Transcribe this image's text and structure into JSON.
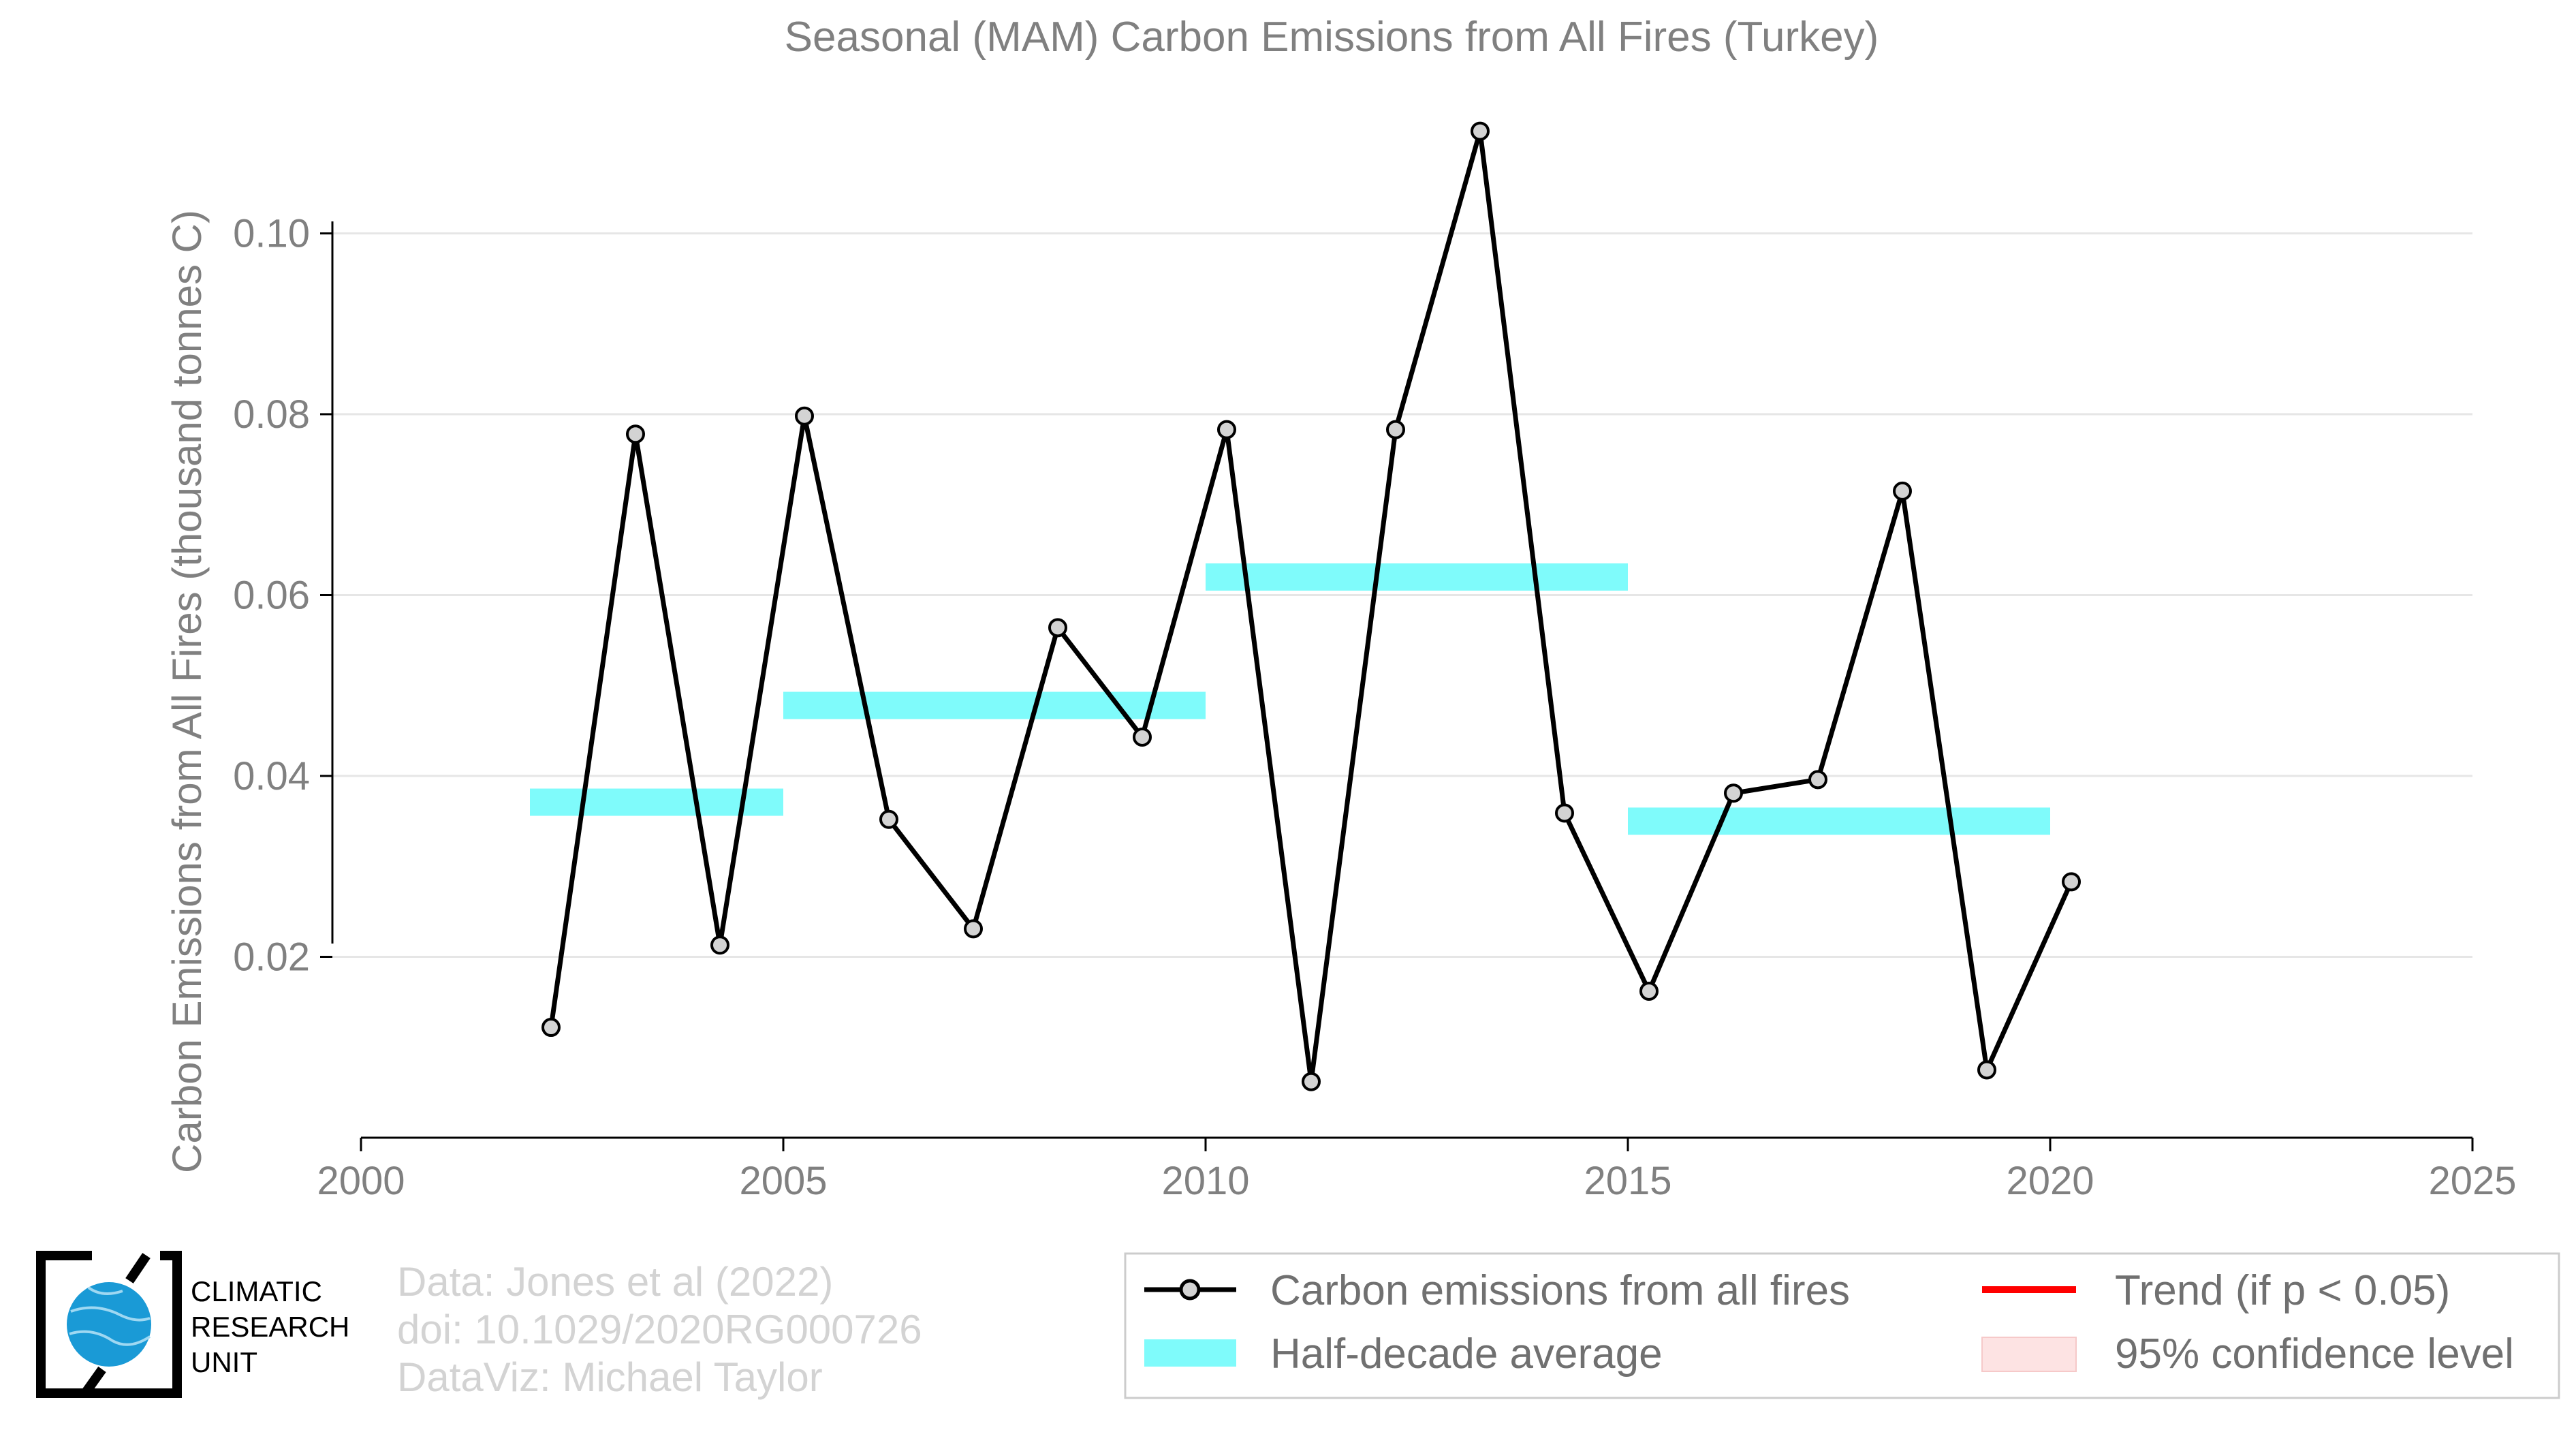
{
  "chart_data": {
    "type": "line",
    "title": "Seasonal (MAM) Carbon Emissions from All Fires (Turkey)",
    "xlabel": "",
    "ylabel": "Carbon Emissions from All Fires (thousand tonnes C)",
    "xlim": [
      2000,
      2025
    ],
    "ylim": [
      0,
      0.113
    ],
    "x_ticks": [
      "2000",
      "2005",
      "2010",
      "2015",
      "2020",
      "2025"
    ],
    "y_ticks": [
      "0.02",
      "0.04",
      "0.06",
      "0.08",
      "0.10"
    ],
    "grid": "horizontal",
    "series": [
      {
        "name": "Carbon emissions from all fires",
        "color": "#000000",
        "x": [
          2002,
          2003,
          2004,
          2005,
          2006,
          2007,
          2008,
          2009,
          2010,
          2011,
          2012,
          2013,
          2014,
          2015,
          2016,
          2017,
          2018,
          2019,
          2020
        ],
        "y": [
          0.0122,
          0.0778,
          0.0213,
          0.0798,
          0.0352,
          0.0231,
          0.0564,
          0.0443,
          0.0783,
          0.0062,
          0.0783,
          0.1113,
          0.0359,
          0.0162,
          0.0381,
          0.0396,
          0.0715,
          0.0075,
          0.0283
        ]
      },
      {
        "name": "Half-decade average",
        "color": "#7ffbfb",
        "segments": [
          {
            "x_start": 2002,
            "x_end": 2005,
            "y": 0.0371
          },
          {
            "x_start": 2005,
            "x_end": 2010,
            "y": 0.0478
          },
          {
            "x_start": 2010,
            "x_end": 2015,
            "y": 0.062
          },
          {
            "x_start": 2015,
            "x_end": 2020,
            "y": 0.035
          }
        ]
      }
    ],
    "legend": {
      "placement": "bottom-right",
      "items": [
        {
          "label": "Carbon emissions from all fires",
          "kind": "line-marker",
          "color": "#000000"
        },
        {
          "label": "Trend (if p < 0.05)",
          "kind": "line",
          "color": "#ff0000"
        },
        {
          "label": "Half-decade average",
          "kind": "band",
          "color": "#7ffbfb"
        },
        {
          "label": "95% confidence level",
          "kind": "patch",
          "color": "#fde3e3"
        }
      ]
    }
  },
  "credits": {
    "line1": "Data: Jones et al (2022)",
    "line2": "doi: 10.1029/2020RG000726",
    "line3": "DataViz: Michael Taylor"
  },
  "logo": {
    "line1": "CLIMATIC",
    "line2": "RESEARCH",
    "line3": "UNIT"
  }
}
